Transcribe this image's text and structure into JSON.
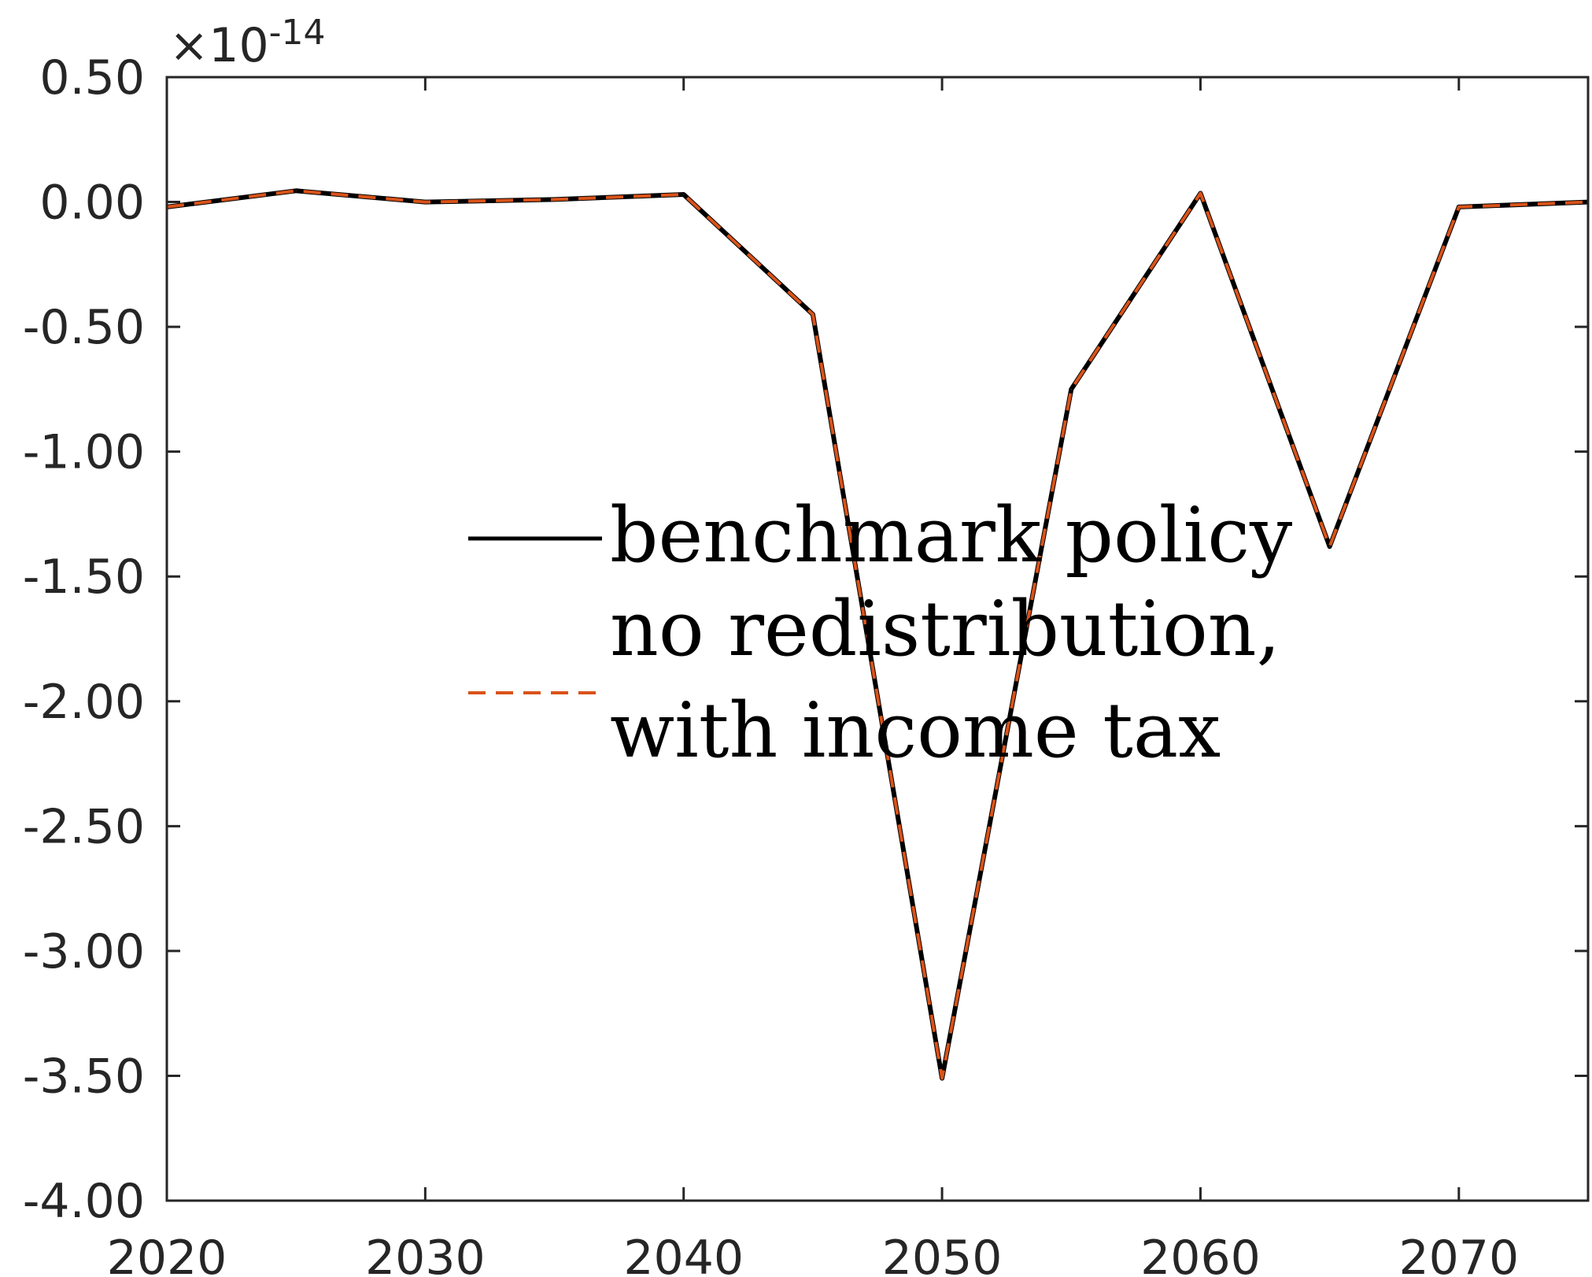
{
  "chart_data": {
    "type": "line",
    "title": "",
    "xlabel": "",
    "ylabel": "",
    "y_exponent_label": {
      "base": "×10",
      "exponent": "-14"
    },
    "xlim": [
      2020,
      2075
    ],
    "ylim": [
      -4.0,
      0.5
    ],
    "x_ticks": [
      2020,
      2030,
      2040,
      2050,
      2060,
      2070
    ],
    "x_tick_labels": [
      "2020",
      "2030",
      "2040",
      "2050",
      "2060",
      "2070"
    ],
    "y_ticks": [
      0.5,
      0.0,
      -0.5,
      -1.0,
      -1.5,
      -2.0,
      -2.5,
      -3.0,
      -3.5,
      -4.0
    ],
    "y_tick_labels": [
      "0.50",
      "0.00",
      "-0.50",
      "-1.00",
      "-1.50",
      "-2.00",
      "-2.50",
      "-3.00",
      "-3.50",
      "-4.00"
    ],
    "grid": false,
    "legend_position": "center",
    "x": [
      2020,
      2025,
      2030,
      2035,
      2040,
      2045,
      2050,
      2055,
      2060,
      2065,
      2070,
      2075
    ],
    "series": [
      {
        "name": "benchmark policy",
        "color": "#000000",
        "style": "solid",
        "values": [
          -0.02,
          0.045,
          0.0,
          0.01,
          0.03,
          -0.45,
          -3.51,
          -0.75,
          0.035,
          -1.38,
          -0.02,
          0.0
        ]
      },
      {
        "name": "no redistribution, with income tax",
        "name_lines": [
          "no redistribution,",
          "with income tax"
        ],
        "color": "#D95319",
        "style": "dashed",
        "values": [
          -0.02,
          0.045,
          0.0,
          0.01,
          0.03,
          -0.45,
          -3.51,
          -0.75,
          0.035,
          -1.38,
          -0.02,
          0.0
        ]
      }
    ]
  }
}
